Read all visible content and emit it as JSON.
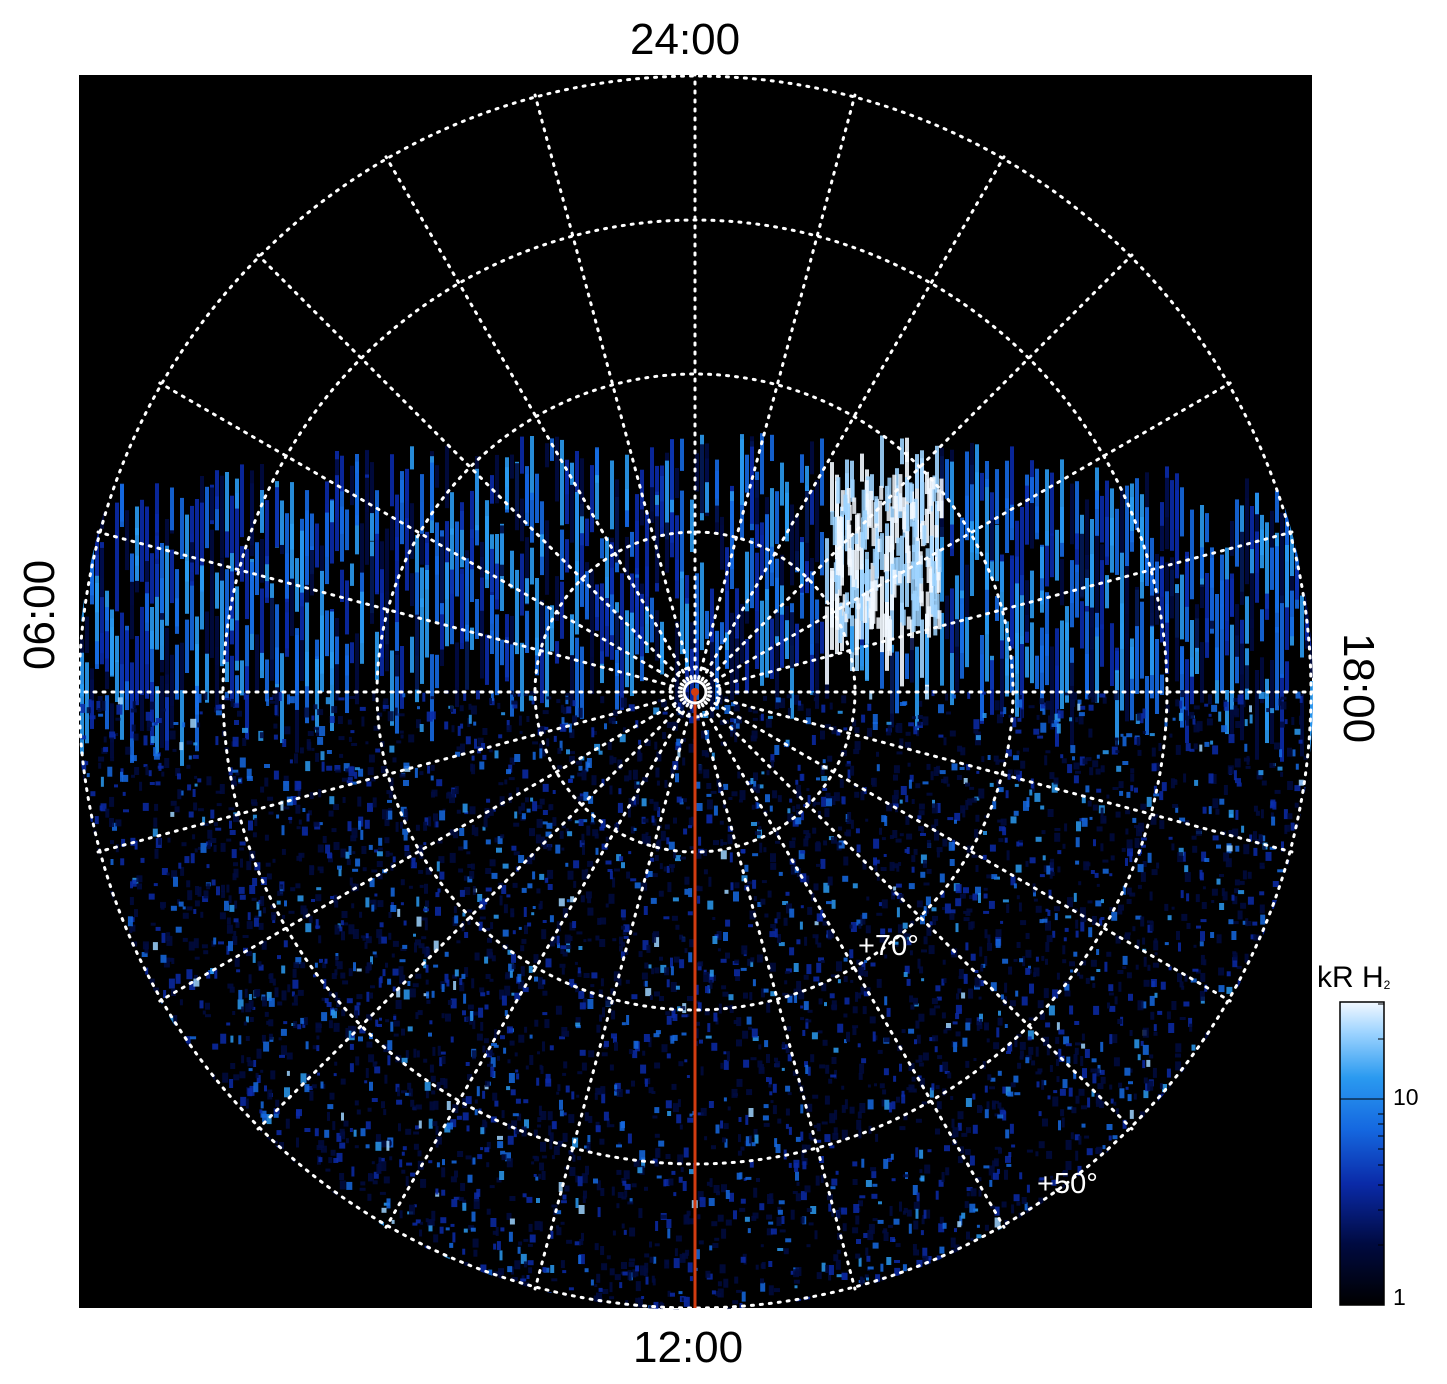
{
  "local_time_labels": {
    "top": "24:00",
    "bottom": "12:00",
    "left": "06:00",
    "right": "18:00"
  },
  "latitude_labels": {
    "inner": "+70°",
    "outer": "+50°"
  },
  "colorbar": {
    "unit_main": "kR H",
    "unit_sub": "2",
    "tick_10": "10",
    "tick_1": "1",
    "scale": "log",
    "colors": [
      "#000000",
      "#000a40",
      "#0a2aa8",
      "#1568e0",
      "#2a9af0",
      "#9ed4ff",
      "#f2f8ff"
    ]
  },
  "colors": {
    "background": "#000000",
    "grid": "#ffffff",
    "meridian_marker": "#d23c10"
  }
}
